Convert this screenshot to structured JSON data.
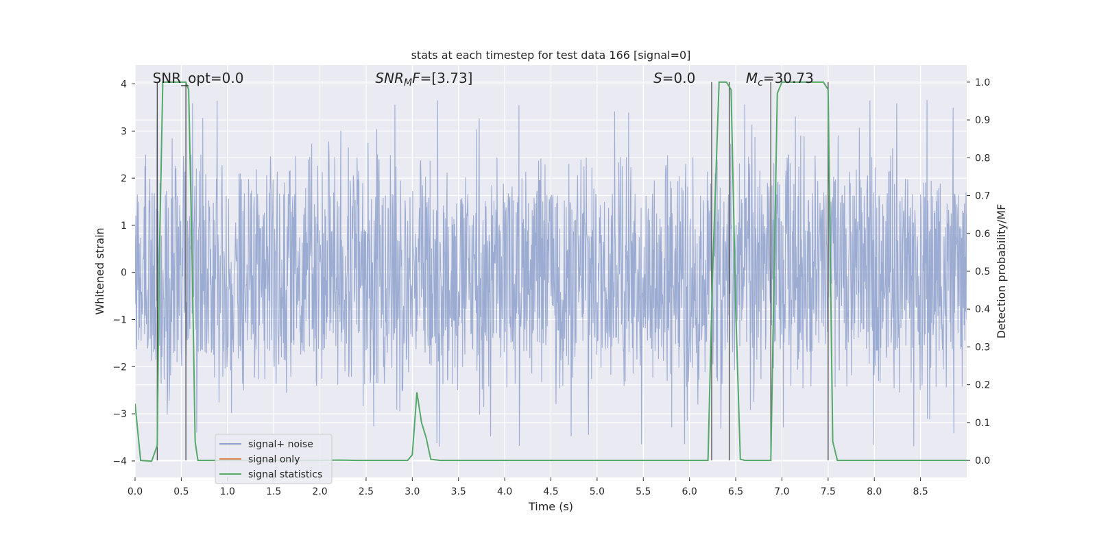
{
  "chart_data": {
    "type": "line",
    "title": "stats at each timestep for test data 166 [signal=0]",
    "xlabel": "Time (s)",
    "ylabel": "Whitened strain",
    "y2label": "Detection probability/MF",
    "xlim": [
      0,
      9.0
    ],
    "ylim": [
      -4.35,
      4.4
    ],
    "y2lim": [
      -0.045,
      1.045
    ],
    "x_ticks": [
      "0.0",
      "0.5",
      "1.0",
      "1.5",
      "2.0",
      "2.5",
      "3.0",
      "3.5",
      "4.0",
      "4.5",
      "5.0",
      "5.5",
      "6.0",
      "6.5",
      "7.0",
      "7.5",
      "8.0",
      "8.5"
    ],
    "y_ticks": [
      "4",
      "3",
      "2",
      "1",
      "0",
      "−1",
      "−2",
      "−3",
      "−4"
    ],
    "y2_ticks": [
      "1.0",
      "0.9",
      "0.8",
      "0.7",
      "0.6",
      "0.5",
      "0.4",
      "0.3",
      "0.2",
      "0.1",
      "0.0"
    ],
    "grid": true,
    "legend_position": "lower-left",
    "annotations": {
      "snr_opt": "SNR_opt=0.0",
      "snr_mf_sym": "SNR",
      "snr_mf_sub": "M",
      "snr_mf_sym2": "F",
      "snr_mf_val": "=[3.73]",
      "s_sym": "S",
      "s_val": "=0.0",
      "mc_sym": "M",
      "mc_sub": "c",
      "mc_val": "=30.73"
    },
    "series": [
      {
        "name": "signal+ noise",
        "color": "#8da0cb",
        "kind": "noise",
        "envelope_typical": 1.7,
        "envelope_peak": 3.7,
        "x_range": [
          0,
          9.0
        ]
      },
      {
        "name": "signal only",
        "color": "#dd8452",
        "kind": "flat",
        "values": []
      },
      {
        "name": "signal statistics",
        "color": "#55a868",
        "kind": "line",
        "axis": "right",
        "points": [
          [
            0.0,
            0.15
          ],
          [
            0.06,
            0.0
          ],
          [
            0.18,
            -0.002
          ],
          [
            0.24,
            0.04
          ],
          [
            0.26,
            0.5
          ],
          [
            0.3,
            1.0
          ],
          [
            0.35,
            1.0
          ],
          [
            0.55,
            1.0
          ],
          [
            0.58,
            0.98
          ],
          [
            0.62,
            0.5
          ],
          [
            0.65,
            0.05
          ],
          [
            0.68,
            0.0
          ],
          [
            1.2,
            0.0
          ],
          [
            2.0,
            0.0
          ],
          [
            2.2,
            0.001
          ],
          [
            2.4,
            0.0
          ],
          [
            2.95,
            0.0
          ],
          [
            3.0,
            0.015
          ],
          [
            3.05,
            0.18
          ],
          [
            3.1,
            0.1
          ],
          [
            3.15,
            0.06
          ],
          [
            3.2,
            0.003
          ],
          [
            3.3,
            0.0
          ],
          [
            4.5,
            0.0
          ],
          [
            5.5,
            0.0
          ],
          [
            6.2,
            0.0
          ],
          [
            6.25,
            0.5
          ],
          [
            6.32,
            1.0
          ],
          [
            6.4,
            1.0
          ],
          [
            6.45,
            0.98
          ],
          [
            6.5,
            0.4
          ],
          [
            6.55,
            0.003
          ],
          [
            6.6,
            0.0
          ],
          [
            6.88,
            0.0
          ],
          [
            6.95,
            0.97
          ],
          [
            7.0,
            1.0
          ],
          [
            7.45,
            1.0
          ],
          [
            7.5,
            0.98
          ],
          [
            7.55,
            0.05
          ],
          [
            7.6,
            0.0
          ],
          [
            8.5,
            0.0
          ],
          [
            9.0,
            0.0
          ]
        ]
      }
    ],
    "vertical_markers": [
      0.24,
      0.55,
      6.24,
      6.43,
      6.88,
      7.5
    ]
  }
}
